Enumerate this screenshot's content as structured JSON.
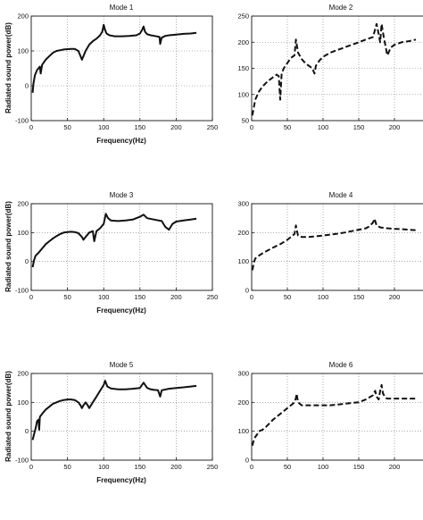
{
  "chart_data": [
    {
      "type": "line",
      "title": "Mode 1",
      "xlabel": "Frequency(Hz)",
      "ylabel": "Radiated sound power(dB)",
      "xlim": [
        0,
        250
      ],
      "ylim": [
        -100,
        200
      ],
      "xticks": [
        0,
        50,
        100,
        150,
        200,
        250
      ],
      "yticks": [
        -100,
        0,
        100,
        200
      ],
      "grid": true,
      "line_style": "solid",
      "series": [
        {
          "x": [
            2,
            3,
            5,
            8,
            10,
            12,
            13,
            15,
            20,
            25,
            30,
            35,
            40,
            45,
            50,
            55,
            60,
            65,
            68,
            70,
            72,
            75,
            80,
            85,
            90,
            95,
            98,
            100,
            102,
            104,
            108,
            115,
            125,
            135,
            145,
            150,
            153,
            155,
            157,
            160,
            165,
            170,
            175,
            177,
            178,
            180,
            185,
            190,
            200,
            210,
            220,
            228
          ],
          "y": [
            -20,
            5,
            30,
            45,
            50,
            55,
            35,
            60,
            75,
            85,
            95,
            100,
            102,
            104,
            105,
            106,
            106,
            100,
            85,
            75,
            85,
            100,
            118,
            128,
            135,
            145,
            155,
            175,
            160,
            150,
            145,
            142,
            142,
            143,
            145,
            150,
            160,
            170,
            155,
            148,
            145,
            143,
            141,
            140,
            120,
            138,
            143,
            145,
            147,
            149,
            150,
            152
          ]
        }
      ]
    },
    {
      "type": "line",
      "title": "Mode 2",
      "xlabel": "",
      "ylabel": "",
      "xlim": [
        0,
        250
      ],
      "ylim": [
        50,
        250
      ],
      "xticks": [
        0,
        50,
        100,
        150,
        200,
        250
      ],
      "yticks": [
        50,
        100,
        150,
        200,
        250
      ],
      "grid": true,
      "line_style": "dashed",
      "series": [
        {
          "x": [
            1,
            3,
            5,
            10,
            15,
            20,
            25,
            30,
            35,
            38,
            40,
            42,
            45,
            50,
            55,
            60,
            62,
            65,
            70,
            75,
            80,
            85,
            88,
            90,
            95,
            100,
            110,
            120,
            130,
            140,
            150,
            160,
            170,
            173,
            175,
            178,
            180,
            182,
            185,
            190,
            195,
            200,
            210,
            220,
            230
          ],
          "y": [
            60,
            75,
            90,
            105,
            115,
            122,
            128,
            133,
            138,
            135,
            90,
            140,
            150,
            160,
            170,
            175,
            205,
            180,
            168,
            160,
            155,
            150,
            140,
            155,
            165,
            172,
            180,
            185,
            190,
            195,
            200,
            205,
            210,
            225,
            235,
            215,
            200,
            235,
            210,
            175,
            190,
            195,
            200,
            202,
            205
          ]
        }
      ]
    },
    {
      "type": "line",
      "title": "Mode 3",
      "xlabel": "Frequency(Hz)",
      "ylabel": "Radiated sound power(dB)",
      "xlim": [
        0,
        250
      ],
      "ylim": [
        -100,
        200
      ],
      "xticks": [
        0,
        50,
        100,
        150,
        200,
        250
      ],
      "yticks": [
        -100,
        0,
        100,
        200
      ],
      "grid": true,
      "line_style": "solid",
      "series": [
        {
          "x": [
            2,
            4,
            6,
            10,
            15,
            20,
            25,
            30,
            35,
            40,
            45,
            50,
            55,
            60,
            65,
            70,
            72,
            75,
            80,
            85,
            87,
            90,
            95,
            100,
            103,
            106,
            110,
            120,
            130,
            140,
            150,
            155,
            160,
            170,
            180,
            185,
            190,
            195,
            200,
            210,
            220,
            228
          ],
          "y": [
            -20,
            5,
            20,
            30,
            45,
            60,
            70,
            80,
            88,
            95,
            100,
            102,
            103,
            102,
            98,
            85,
            75,
            85,
            100,
            105,
            70,
            105,
            115,
            130,
            165,
            150,
            142,
            140,
            142,
            145,
            155,
            162,
            150,
            145,
            140,
            120,
            110,
            130,
            138,
            142,
            145,
            148
          ]
        }
      ]
    },
    {
      "type": "line",
      "title": "Mode 4",
      "xlabel": "",
      "ylabel": "",
      "xlim": [
        0,
        250
      ],
      "ylim": [
        0,
        300
      ],
      "xticks": [
        0,
        50,
        100,
        150,
        200,
        250
      ],
      "yticks": [
        0,
        100,
        200,
        300
      ],
      "grid": true,
      "line_style": "dashed",
      "series": [
        {
          "x": [
            1,
            3,
            5,
            10,
            15,
            20,
            30,
            40,
            50,
            55,
            60,
            62,
            63,
            65,
            70,
            80,
            90,
            100,
            110,
            120,
            130,
            140,
            150,
            160,
            165,
            170,
            172,
            175,
            180,
            190,
            200,
            210,
            220,
            230
          ],
          "y": [
            70,
            95,
            110,
            120,
            128,
            135,
            148,
            160,
            175,
            185,
            195,
            225,
            210,
            190,
            185,
            185,
            187,
            190,
            193,
            196,
            200,
            205,
            210,
            215,
            222,
            235,
            248,
            225,
            218,
            215,
            213,
            212,
            210,
            208
          ]
        }
      ]
    },
    {
      "type": "line",
      "title": "Mode 5",
      "xlabel": "Frequency(Hz)",
      "ylabel": "Radiated sound power(dB)",
      "xlim": [
        0,
        250
      ],
      "ylim": [
        -100,
        200
      ],
      "xticks": [
        0,
        50,
        100,
        150,
        200,
        250
      ],
      "yticks": [
        -100,
        0,
        100,
        200
      ],
      "grid": true,
      "line_style": "solid",
      "series": [
        {
          "x": [
            2,
            4,
            6,
            8,
            10,
            11,
            12,
            15,
            20,
            25,
            30,
            35,
            40,
            45,
            50,
            55,
            60,
            65,
            68,
            70,
            72,
            75,
            78,
            80,
            85,
            90,
            95,
            100,
            102,
            105,
            110,
            120,
            130,
            140,
            150,
            155,
            160,
            165,
            170,
            175,
            178,
            180,
            190,
            200,
            210,
            220,
            228
          ],
          "y": [
            -30,
            -10,
            10,
            35,
            40,
            5,
            50,
            60,
            75,
            85,
            95,
            100,
            105,
            108,
            110,
            110,
            108,
            100,
            90,
            80,
            90,
            100,
            90,
            80,
            100,
            120,
            140,
            160,
            175,
            155,
            148,
            145,
            145,
            147,
            150,
            168,
            150,
            145,
            143,
            142,
            120,
            142,
            147,
            150,
            152,
            155,
            157
          ]
        }
      ]
    },
    {
      "type": "line",
      "title": "Mode 6",
      "xlabel": "",
      "ylabel": "",
      "xlim": [
        0,
        250
      ],
      "ylim": [
        0,
        300
      ],
      "xticks": [
        0,
        50,
        100,
        150,
        200,
        250
      ],
      "yticks": [
        0,
        100,
        200,
        300
      ],
      "grid": true,
      "line_style": "dashed",
      "series": [
        {
          "x": [
            1,
            3,
            5,
            8,
            10,
            15,
            20,
            30,
            40,
            50,
            55,
            60,
            62,
            63,
            65,
            70,
            80,
            90,
            100,
            110,
            120,
            130,
            140,
            150,
            160,
            170,
            173,
            175,
            178,
            180,
            182,
            184,
            188,
            190,
            200,
            210,
            220,
            230
          ],
          "y": [
            50,
            70,
            80,
            90,
            100,
            105,
            115,
            140,
            160,
            180,
            190,
            200,
            215,
            230,
            200,
            190,
            190,
            190,
            190,
            190,
            192,
            195,
            198,
            200,
            210,
            225,
            240,
            220,
            210,
            240,
            260,
            230,
            215,
            213,
            213,
            213,
            213,
            213
          ]
        }
      ]
    }
  ]
}
